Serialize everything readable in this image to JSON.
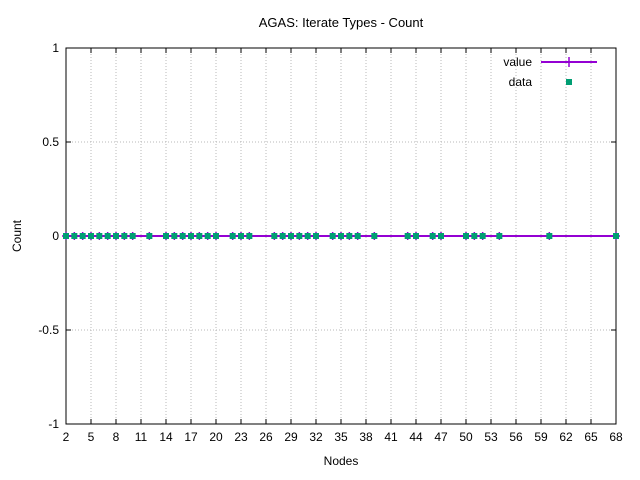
{
  "window": {
    "background": "#ffffff"
  },
  "chart_data": {
    "type": "line",
    "title": "AGAS: Iterate Types - Count",
    "xlabel": "Nodes",
    "ylabel": "Count",
    "xlim": [
      2,
      68
    ],
    "ylim": [
      -1,
      1
    ],
    "xticks": [
      2,
      5,
      8,
      11,
      14,
      17,
      20,
      23,
      26,
      29,
      32,
      35,
      38,
      41,
      44,
      47,
      50,
      53,
      56,
      59,
      62,
      65,
      68
    ],
    "ytick_labels": [
      "-1",
      "-0.5",
      "0",
      "0.5",
      "1"
    ],
    "ytick_values": [
      -1,
      -0.5,
      0,
      0.5,
      1
    ],
    "grid": "dotted, both axes",
    "legend": {
      "position": "inside top-right"
    },
    "x": [
      2,
      3,
      4,
      5,
      6,
      7,
      8,
      9,
      10,
      12,
      14,
      15,
      16,
      17,
      18,
      19,
      20,
      22,
      23,
      24,
      27,
      28,
      29,
      30,
      31,
      32,
      34,
      35,
      36,
      37,
      39,
      43,
      44,
      46,
      47,
      50,
      51,
      52,
      54,
      60,
      68
    ],
    "series": [
      {
        "name": "value",
        "style": "line with plus markers",
        "color": "#9400d3",
        "values": [
          0,
          0,
          0,
          0,
          0,
          0,
          0,
          0,
          0,
          0,
          0,
          0,
          0,
          0,
          0,
          0,
          0,
          0,
          0,
          0,
          0,
          0,
          0,
          0,
          0,
          0,
          0,
          0,
          0,
          0,
          0,
          0,
          0,
          0,
          0,
          0,
          0,
          0,
          0,
          0,
          0
        ]
      },
      {
        "name": "data",
        "style": "filled square markers",
        "color": "#009e73",
        "values": [
          0,
          0,
          0,
          0,
          0,
          0,
          0,
          0,
          0,
          0,
          0,
          0,
          0,
          0,
          0,
          0,
          0,
          0,
          0,
          0,
          0,
          0,
          0,
          0,
          0,
          0,
          0,
          0,
          0,
          0,
          0,
          0,
          0,
          0,
          0,
          0,
          0,
          0,
          0,
          0,
          0
        ]
      }
    ],
    "colors": {
      "axis": "#000000",
      "grid": "#b8b8b8",
      "text": "#000000"
    }
  }
}
